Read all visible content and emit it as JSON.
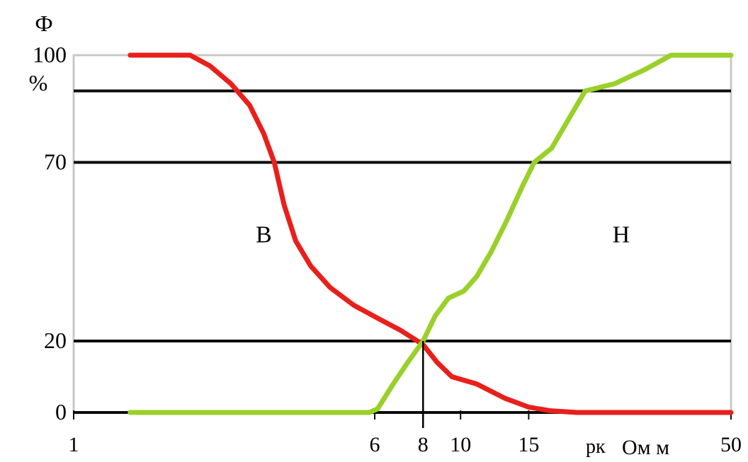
{
  "chart_data": {
    "type": "line",
    "ylabel": "Ф",
    "yunit": "%",
    "xlabel": "pк",
    "xunit": "Ом м",
    "x_scale": "log",
    "xlim": [
      1,
      50
    ],
    "ylim": [
      0,
      100
    ],
    "x_ticks": [
      1,
      6,
      8,
      10,
      15,
      50
    ],
    "y_ticks": [
      0,
      20,
      70,
      100
    ],
    "reference_lines_y": [
      0,
      20,
      70,
      90,
      100
    ],
    "marker_x": 8,
    "colors": {
      "B": "#e8201c",
      "H": "#9ad02a",
      "grid": "#0b0b0b",
      "frame": "#c8c8c8"
    },
    "series": [
      {
        "name": "В",
        "label_at": {
          "x": 3.1,
          "y": 50
        },
        "points": [
          [
            1.4,
            100
          ],
          [
            2.0,
            100
          ],
          [
            2.25,
            97
          ],
          [
            2.55,
            92
          ],
          [
            2.85,
            86
          ],
          [
            3.1,
            78
          ],
          [
            3.3,
            70
          ],
          [
            3.5,
            58
          ],
          [
            3.75,
            48
          ],
          [
            4.1,
            41
          ],
          [
            4.6,
            35
          ],
          [
            5.3,
            30
          ],
          [
            6.2,
            26
          ],
          [
            7.0,
            23
          ],
          [
            8.0,
            19
          ],
          [
            8.7,
            14
          ],
          [
            9.5,
            10
          ],
          [
            11,
            8
          ],
          [
            13,
            4
          ],
          [
            15,
            1.5
          ],
          [
            17,
            0.5
          ],
          [
            20,
            0
          ],
          [
            50,
            0
          ]
        ]
      },
      {
        "name": "Н",
        "label_at": {
          "x": 26,
          "y": 50
        },
        "points": [
          [
            1.4,
            0
          ],
          [
            5.8,
            0
          ],
          [
            6.1,
            1
          ],
          [
            6.7,
            8
          ],
          [
            7.3,
            14
          ],
          [
            8.0,
            20
          ],
          [
            8.6,
            27
          ],
          [
            9.3,
            32
          ],
          [
            10.2,
            34
          ],
          [
            11.0,
            38
          ],
          [
            12.0,
            45
          ],
          [
            13.2,
            54
          ],
          [
            14.4,
            63
          ],
          [
            15.5,
            70
          ],
          [
            17.2,
            74
          ],
          [
            19,
            82
          ],
          [
            21,
            90
          ],
          [
            25,
            92
          ],
          [
            30,
            96
          ],
          [
            35,
            100
          ],
          [
            50,
            100
          ]
        ]
      }
    ]
  }
}
